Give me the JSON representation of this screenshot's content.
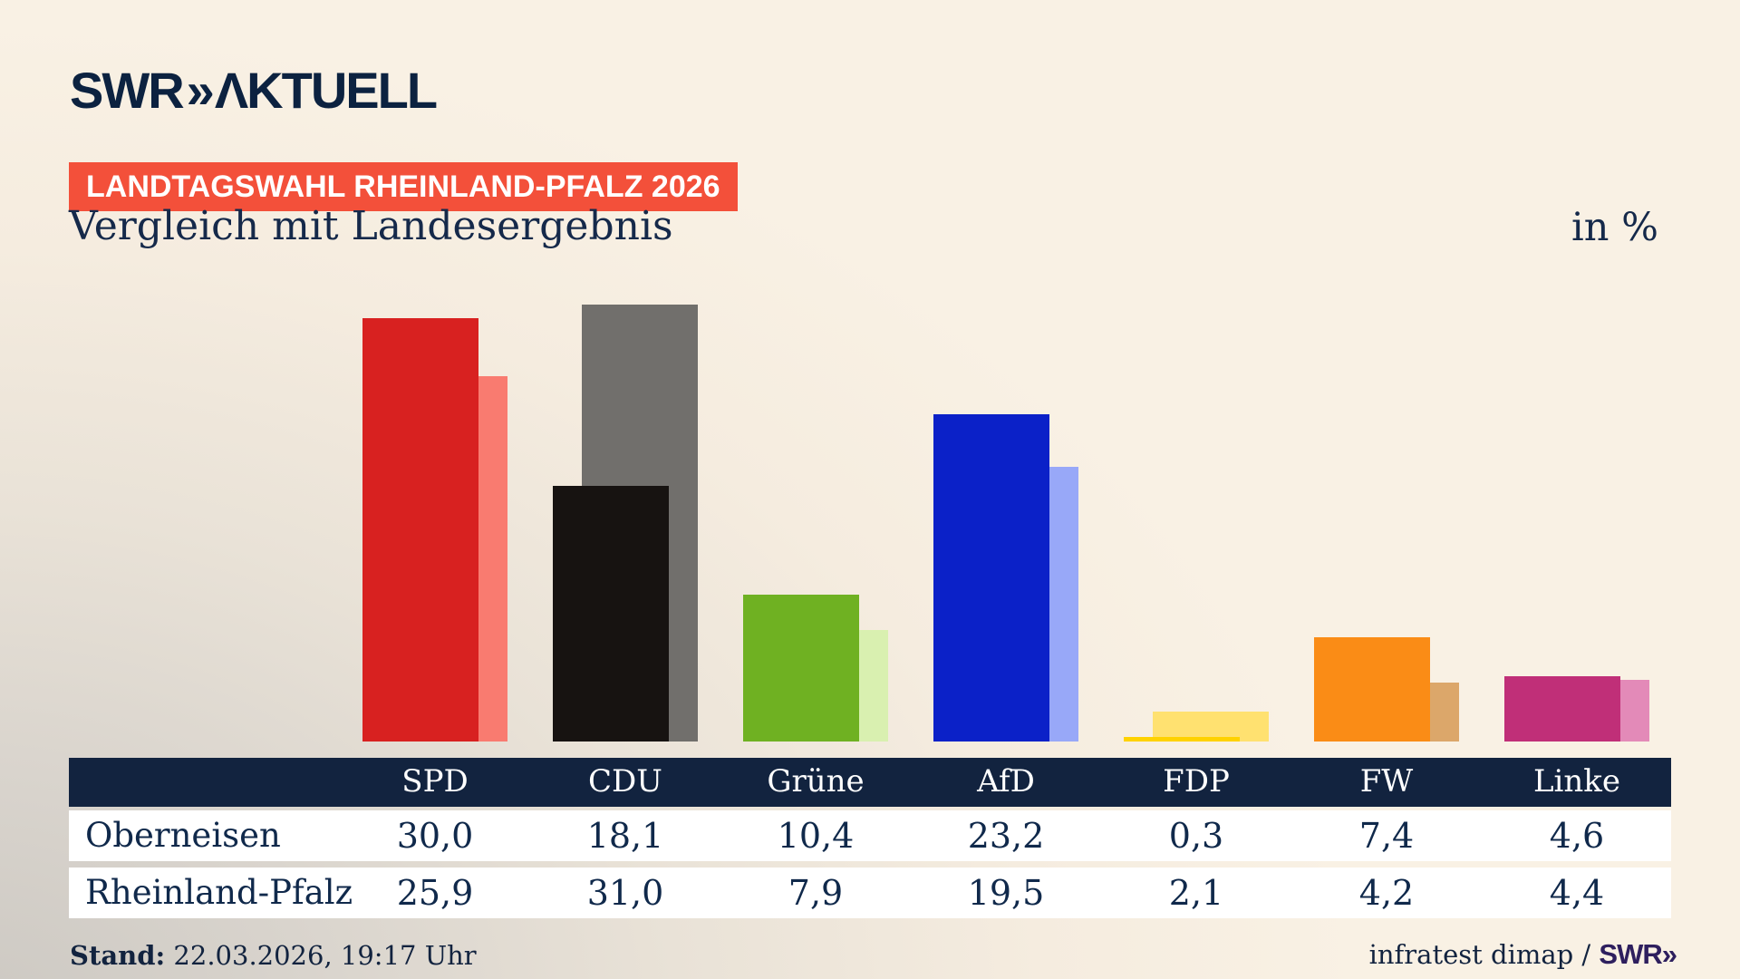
{
  "brand": {
    "swr": "SWR",
    "chevron": "»",
    "product": "ΛKTUELL"
  },
  "badge_label": "LANDTAGSWAHL RHEINLAND-PFALZ 2026",
  "title": "Vergleich mit Landesergebnis",
  "unit_label": "in %",
  "chart_data": {
    "type": "bar",
    "title": "Vergleich mit Landesergebnis",
    "unit": "in %",
    "categories": [
      "SPD",
      "CDU",
      "Grüne",
      "AfD",
      "FDP",
      "FW",
      "Linke"
    ],
    "series": [
      {
        "name": "Oberneisen",
        "role": "front",
        "values": [
          30.0,
          18.1,
          10.4,
          23.2,
          0.3,
          7.4,
          4.6
        ],
        "colors": [
          "#d82120",
          "#171311",
          "#6fb122",
          "#0b21c8",
          "#ffd200",
          "#fa8c16",
          "#c02f78"
        ]
      },
      {
        "name": "Rheinland-Pfalz",
        "role": "back",
        "values": [
          25.9,
          31.0,
          7.9,
          19.5,
          2.1,
          4.2,
          4.4
        ],
        "colors": [
          "#f97b70",
          "#716f6c",
          "#d9f0b0",
          "#98a8f8",
          "#ffe170",
          "#dca76a",
          "#e38ab8"
        ]
      }
    ],
    "ylim": [
      0,
      33
    ],
    "grid": false,
    "legend_position": "table-below",
    "value_format": "decimal-comma-1"
  },
  "footer": {
    "stand_label": "Stand:",
    "stand_value": " 22.03.2026, 19:17 Uhr",
    "source_text": "infratest dimap / ",
    "source_brand_swr": "SWR",
    "source_brand_chevron": "»"
  },
  "colors": {
    "badge_red": "#f3503a",
    "navy_text": "#13294a",
    "table_header_navy": "#12233f",
    "brand_navy": "#0c2240",
    "brand_purple": "#2e1f5e",
    "bg_cream": "#f9f1e4",
    "bg_gray": "#ccc8c2",
    "row_white": "#ffffff"
  }
}
